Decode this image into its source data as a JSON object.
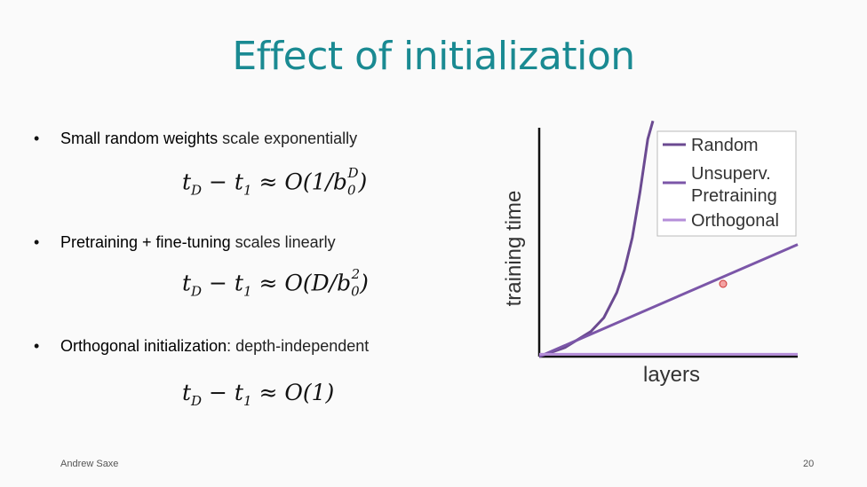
{
  "slide": {
    "title": "Effect of initialization",
    "footer_author": "Andrew Saxe",
    "page_number": "20"
  },
  "bullets": [
    {
      "marker": "•",
      "bold": "Small random weights",
      "rest": " scale exponentially",
      "equation": {
        "lhs": "t",
        "lhs_sub": "D",
        "minus": " − t",
        "minus_sub": "1",
        "approx": " ≈ O(1/b",
        "base_sub": "0",
        "exp": "D",
        "close": ")"
      }
    },
    {
      "marker": "•",
      "bold": "Pretraining + fine-tuning",
      "rest": " scales linearly",
      "equation": {
        "lhs": "t",
        "lhs_sub": "D",
        "minus": " − t",
        "minus_sub": "1",
        "approx": " ≈ O(D/b",
        "base_sub": "0",
        "exp": "2",
        "close": ")"
      }
    },
    {
      "marker": "•",
      "bold": "Orthogonal initialization",
      "rest": ": depth-independent",
      "equation": {
        "lhs": "t",
        "lhs_sub": "D",
        "minus": " − t",
        "minus_sub": "1",
        "approx": " ≈ O(1)"
      }
    }
  ],
  "chart_data": {
    "type": "line",
    "xlabel": "layers",
    "ylabel": "training time",
    "grid": false,
    "legend_position": "top-right",
    "x_range": [
      0,
      1
    ],
    "y_range": [
      0,
      1
    ],
    "series": [
      {
        "name": "Random",
        "color": "#6b4a91",
        "shape": "exponential",
        "x": [
          0.0,
          0.1,
          0.2,
          0.25,
          0.3,
          0.33,
          0.36,
          0.39,
          0.42,
          0.44
        ],
        "y": [
          0.0,
          0.04,
          0.11,
          0.17,
          0.28,
          0.38,
          0.52,
          0.72,
          0.95,
          1.03
        ]
      },
      {
        "name": "Unsuperv.\nPretraining",
        "legend_lines": [
          "Unsuperv.",
          "Pretraining"
        ],
        "color": "#7b56a8",
        "shape": "linear",
        "x": [
          0.0,
          1.0
        ],
        "y": [
          0.0,
          0.49
        ]
      },
      {
        "name": "Orthogonal",
        "color": "#b58ed9",
        "shape": "constant",
        "x": [
          0.0,
          1.0
        ],
        "y": [
          0.01,
          0.01
        ]
      }
    ]
  }
}
